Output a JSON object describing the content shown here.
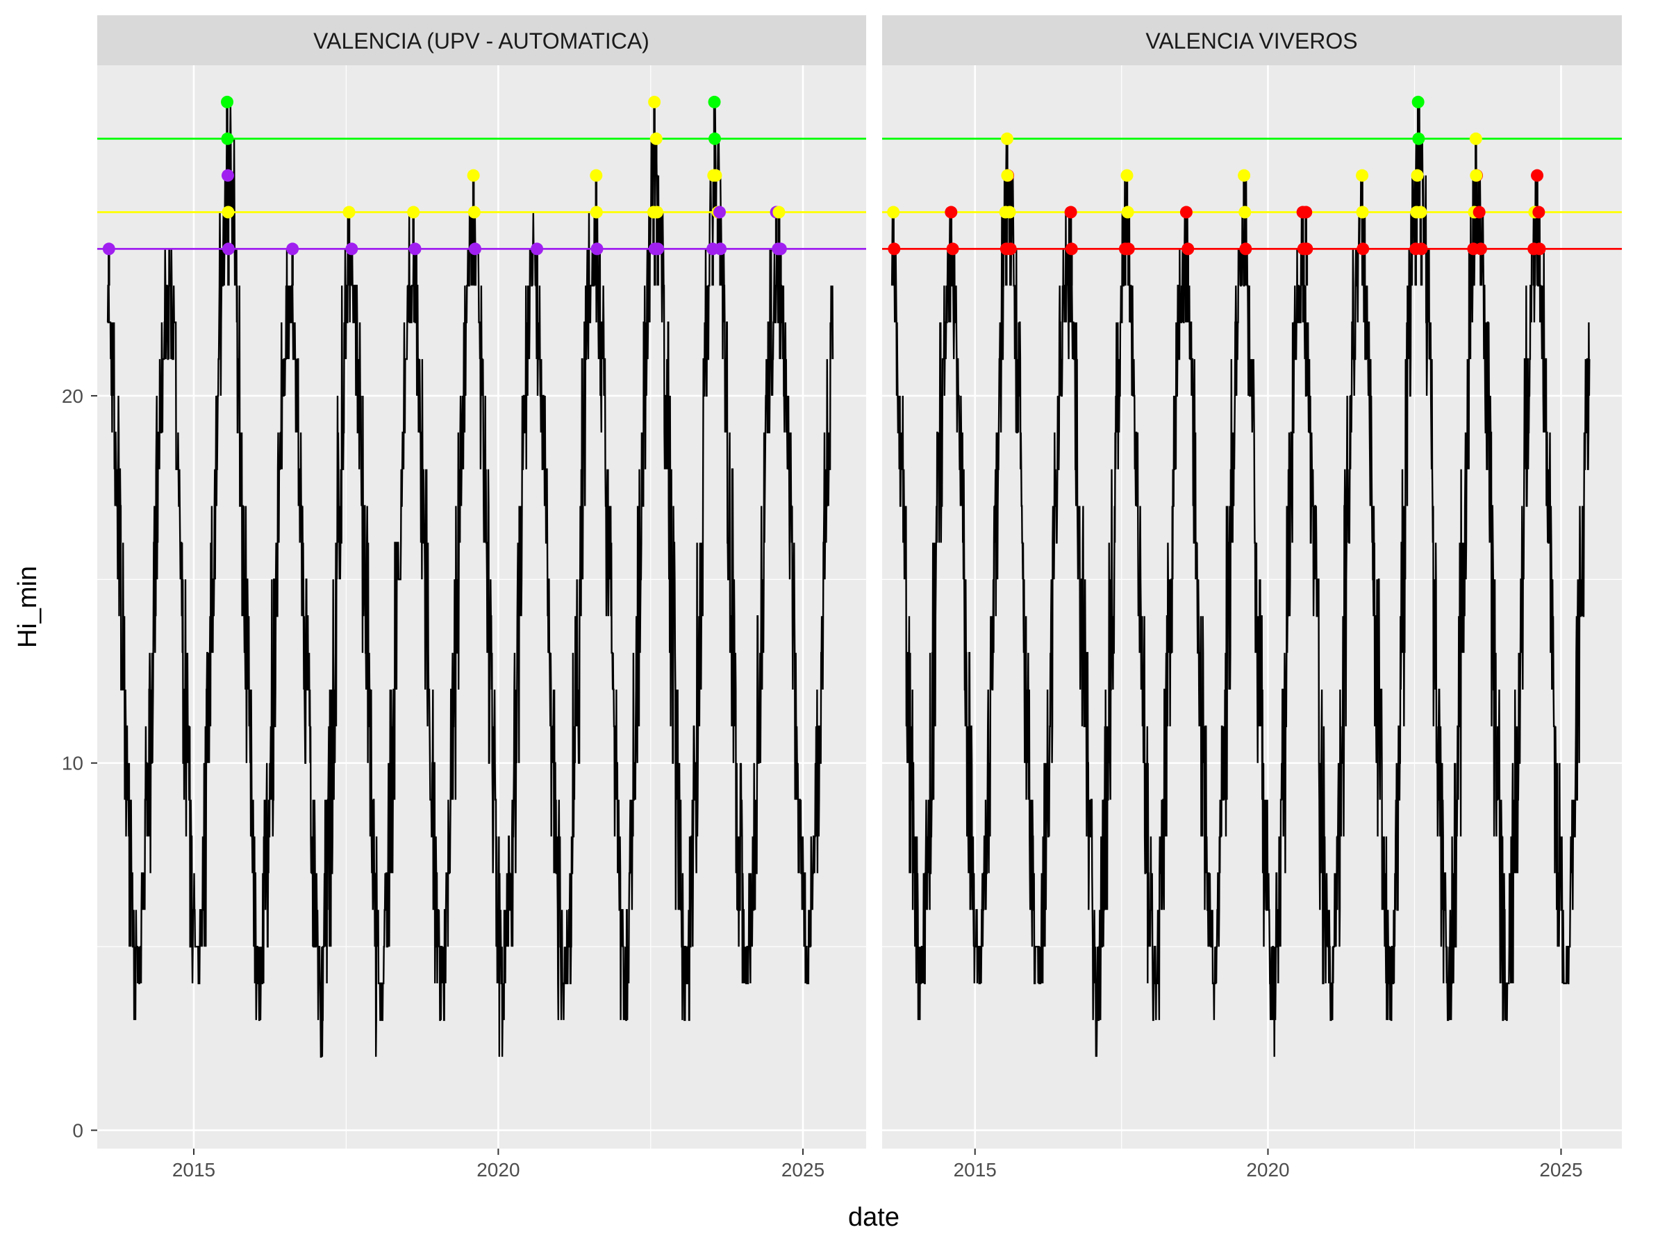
{
  "chart_data": {
    "type": "line",
    "facet_by": "station",
    "xlabel": "date",
    "ylabel": "Hi_min",
    "x_ticks": [
      "2015",
      "2020",
      "2025"
    ],
    "x_range": [
      "2013-06-01",
      "2026-01-15"
    ],
    "y_ticks": [
      0,
      10,
      20
    ],
    "ylim": [
      -0.5,
      29
    ],
    "grid": true,
    "legend": "none",
    "colors": {
      "panel_bg": "#ebebeb",
      "strip_bg": "#d9d9d9",
      "grid": "#ffffff",
      "line": "#000000",
      "green": "#00ff00",
      "yellow": "#ffff00",
      "purple": "#a020f0",
      "red": "#ff0000"
    },
    "panels": [
      {
        "title": "VALENCIA (UPV - AUTOMATICA)",
        "date_range": [
          "2013-08-01",
          "2025-06-30"
        ],
        "thresholds": [
          {
            "value": 27,
            "color": "#00ff00"
          },
          {
            "value": 25,
            "color": "#ffff00"
          },
          {
            "value": 24,
            "color": "#a020f0"
          }
        ],
        "annual": [
          {
            "year": 2013,
            "summer_peak": 24,
            "winter_min": 3
          },
          {
            "year": 2014,
            "summer_peak": 24,
            "winter_min": 2
          },
          {
            "year": 2015,
            "summer_peak": 28,
            "winter_min": 3
          },
          {
            "year": 2016,
            "summer_peak": 24,
            "winter_min": 2
          },
          {
            "year": 2017,
            "summer_peak": 25,
            "winter_min": 1
          },
          {
            "year": 2018,
            "summer_peak": 25,
            "winter_min": 2
          },
          {
            "year": 2019,
            "summer_peak": 26,
            "winter_min": 2
          },
          {
            "year": 2020,
            "summer_peak": 25,
            "winter_min": 1
          },
          {
            "year": 2021,
            "summer_peak": 26,
            "winter_min": 2
          },
          {
            "year": 2022,
            "summer_peak": 28,
            "winter_min": 2
          },
          {
            "year": 2023,
            "summer_peak": 28,
            "winter_min": 2
          },
          {
            "year": 2024,
            "summer_peak": 25,
            "winter_min": 3
          },
          {
            "year": 2025,
            "summer_peak": 25,
            "winter_min": null
          }
        ],
        "events": [
          {
            "date": "2013-08-10",
            "value": 24,
            "color": "#a020f0"
          },
          {
            "date": "2015-07-20",
            "value": 28,
            "color": "#00ff00"
          },
          {
            "date": "2015-07-22",
            "value": 27,
            "color": "#00ff00"
          },
          {
            "date": "2015-07-24",
            "value": 26,
            "color": "#a020f0"
          },
          {
            "date": "2015-07-26",
            "value": 25,
            "color": "#ffff00"
          },
          {
            "date": "2015-07-28",
            "value": 24,
            "color": "#a020f0"
          },
          {
            "date": "2016-08-15",
            "value": 24,
            "color": "#a020f0"
          },
          {
            "date": "2017-07-20",
            "value": 25,
            "color": "#ffff00"
          },
          {
            "date": "2017-08-05",
            "value": 24,
            "color": "#a020f0"
          },
          {
            "date": "2018-08-10",
            "value": 25,
            "color": "#ffff00"
          },
          {
            "date": "2018-08-20",
            "value": 24,
            "color": "#a020f0"
          },
          {
            "date": "2019-08-05",
            "value": 26,
            "color": "#ffff00"
          },
          {
            "date": "2019-08-10",
            "value": 25,
            "color": "#ffff00"
          },
          {
            "date": "2019-08-15",
            "value": 24,
            "color": "#a020f0"
          },
          {
            "date": "2020-08-20",
            "value": 24,
            "color": "#a020f0"
          },
          {
            "date": "2021-08-10",
            "value": 26,
            "color": "#ffff00"
          },
          {
            "date": "2021-08-12",
            "value": 25,
            "color": "#ffff00"
          },
          {
            "date": "2021-08-15",
            "value": 24,
            "color": "#a020f0"
          },
          {
            "date": "2022-07-25",
            "value": 28,
            "color": "#ffff00"
          },
          {
            "date": "2022-08-05",
            "value": 27,
            "color": "#ffff00"
          },
          {
            "date": "2022-07-20",
            "value": 25,
            "color": "#ffff00"
          },
          {
            "date": "2022-08-10",
            "value": 25,
            "color": "#ffff00"
          },
          {
            "date": "2022-07-28",
            "value": 24,
            "color": "#a020f0"
          },
          {
            "date": "2022-08-15",
            "value": 24,
            "color": "#a020f0"
          },
          {
            "date": "2023-07-20",
            "value": 28,
            "color": "#00ff00"
          },
          {
            "date": "2023-07-22",
            "value": 27,
            "color": "#00ff00"
          },
          {
            "date": "2023-07-15",
            "value": 26,
            "color": "#ffff00"
          },
          {
            "date": "2023-07-28",
            "value": 26,
            "color": "#ffff00"
          },
          {
            "date": "2023-08-10",
            "value": 25,
            "color": "#ffff00"
          },
          {
            "date": "2023-08-20",
            "value": 25,
            "color": "#a020f0"
          },
          {
            "date": "2023-07-10",
            "value": 24,
            "color": "#a020f0"
          },
          {
            "date": "2023-08-25",
            "value": 24,
            "color": "#a020f0"
          },
          {
            "date": "2024-07-25",
            "value": 25,
            "color": "#a020f0"
          },
          {
            "date": "2024-08-10",
            "value": 25,
            "color": "#ffff00"
          },
          {
            "date": "2024-08-05",
            "value": 24,
            "color": "#a020f0"
          },
          {
            "date": "2024-08-20",
            "value": 24,
            "color": "#a020f0"
          }
        ]
      },
      {
        "title": "VALENCIA VIVEROS",
        "date_range": [
          "2013-08-01",
          "2025-06-30"
        ],
        "thresholds": [
          {
            "value": 27,
            "color": "#00ff00"
          },
          {
            "value": 25,
            "color": "#ffff00"
          },
          {
            "value": 24,
            "color": "#ff0000"
          }
        ],
        "annual": [
          {
            "year": 2013,
            "summer_peak": 25,
            "winter_min": 3
          },
          {
            "year": 2014,
            "summer_peak": 25,
            "winter_min": 2
          },
          {
            "year": 2015,
            "summer_peak": 27,
            "winter_min": 3
          },
          {
            "year": 2016,
            "summer_peak": 25,
            "winter_min": 3
          },
          {
            "year": 2017,
            "summer_peak": 26,
            "winter_min": 1
          },
          {
            "year": 2018,
            "summer_peak": 25,
            "winter_min": 2
          },
          {
            "year": 2019,
            "summer_peak": 26,
            "winter_min": 2
          },
          {
            "year": 2020,
            "summer_peak": 25,
            "winter_min": 1
          },
          {
            "year": 2021,
            "summer_peak": 26,
            "winter_min": 2
          },
          {
            "year": 2022,
            "summer_peak": 28,
            "winter_min": 2
          },
          {
            "year": 2023,
            "summer_peak": 27,
            "winter_min": 2
          },
          {
            "year": 2024,
            "summer_peak": 26,
            "winter_min": 2
          },
          {
            "year": 2025,
            "summer_peak": 24,
            "winter_min": null
          }
        ],
        "events": [
          {
            "date": "2013-08-10",
            "value": 25,
            "color": "#ffff00"
          },
          {
            "date": "2013-08-15",
            "value": 24,
            "color": "#ff0000"
          },
          {
            "date": "2014-08-05",
            "value": 25,
            "color": "#ff0000"
          },
          {
            "date": "2014-08-15",
            "value": 24,
            "color": "#ff0000"
          },
          {
            "date": "2015-07-20",
            "value": 27,
            "color": "#ffff00"
          },
          {
            "date": "2015-07-25",
            "value": 26,
            "color": "#ff0000"
          },
          {
            "date": "2015-07-22",
            "value": 26,
            "color": "#ffff00"
          },
          {
            "date": "2015-07-10",
            "value": 25,
            "color": "#ffff00"
          },
          {
            "date": "2015-08-05",
            "value": 25,
            "color": "#ffff00"
          },
          {
            "date": "2015-07-15",
            "value": 24,
            "color": "#ff0000"
          },
          {
            "date": "2015-08-10",
            "value": 24,
            "color": "#ff0000"
          },
          {
            "date": "2016-08-20",
            "value": 25,
            "color": "#ff0000"
          },
          {
            "date": "2016-08-25",
            "value": 24,
            "color": "#ff0000"
          },
          {
            "date": "2017-08-05",
            "value": 26,
            "color": "#ffff00"
          },
          {
            "date": "2017-08-10",
            "value": 25,
            "color": "#ffff00"
          },
          {
            "date": "2017-07-25",
            "value": 24,
            "color": "#ff0000"
          },
          {
            "date": "2017-08-15",
            "value": 24,
            "color": "#ff0000"
          },
          {
            "date": "2018-08-10",
            "value": 25,
            "color": "#ff0000"
          },
          {
            "date": "2018-08-20",
            "value": 24,
            "color": "#ff0000"
          },
          {
            "date": "2019-08-05",
            "value": 26,
            "color": "#ffff00"
          },
          {
            "date": "2019-08-10",
            "value": 25,
            "color": "#ffff00"
          },
          {
            "date": "2019-08-15",
            "value": 24,
            "color": "#ff0000"
          },
          {
            "date": "2020-08-05",
            "value": 25,
            "color": "#ff0000"
          },
          {
            "date": "2020-08-25",
            "value": 25,
            "color": "#ff0000"
          },
          {
            "date": "2020-08-10",
            "value": 24,
            "color": "#ff0000"
          },
          {
            "date": "2020-08-30",
            "value": 24,
            "color": "#ff0000"
          },
          {
            "date": "2021-08-10",
            "value": 26,
            "color": "#ffff00"
          },
          {
            "date": "2021-08-12",
            "value": 25,
            "color": "#ffff00"
          },
          {
            "date": "2021-08-15",
            "value": 24,
            "color": "#ff0000"
          },
          {
            "date": "2022-07-25",
            "value": 28,
            "color": "#00ff00"
          },
          {
            "date": "2022-07-28",
            "value": 27,
            "color": "#00ff00"
          },
          {
            "date": "2022-07-20",
            "value": 26,
            "color": "#ffff00"
          },
          {
            "date": "2022-07-15",
            "value": 25,
            "color": "#ffff00"
          },
          {
            "date": "2022-08-10",
            "value": 25,
            "color": "#ffff00"
          },
          {
            "date": "2022-07-10",
            "value": 24,
            "color": "#ff0000"
          },
          {
            "date": "2022-08-15",
            "value": 24,
            "color": "#ff0000"
          },
          {
            "date": "2023-07-20",
            "value": 27,
            "color": "#ffff00"
          },
          {
            "date": "2023-07-25",
            "value": 26,
            "color": "#ff0000"
          },
          {
            "date": "2023-07-22",
            "value": 26,
            "color": "#ffff00"
          },
          {
            "date": "2023-07-10",
            "value": 25,
            "color": "#ffff00"
          },
          {
            "date": "2023-08-10",
            "value": 25,
            "color": "#ff0000"
          },
          {
            "date": "2023-07-05",
            "value": 24,
            "color": "#ff0000"
          },
          {
            "date": "2023-08-20",
            "value": 24,
            "color": "#ff0000"
          },
          {
            "date": "2024-08-05",
            "value": 26,
            "color": "#ff0000"
          },
          {
            "date": "2024-07-20",
            "value": 25,
            "color": "#ffff00"
          },
          {
            "date": "2024-08-15",
            "value": 25,
            "color": "#ff0000"
          },
          {
            "date": "2024-07-15",
            "value": 24,
            "color": "#ff0000"
          },
          {
            "date": "2024-08-20",
            "value": 24,
            "color": "#ff0000"
          }
        ]
      }
    ]
  }
}
